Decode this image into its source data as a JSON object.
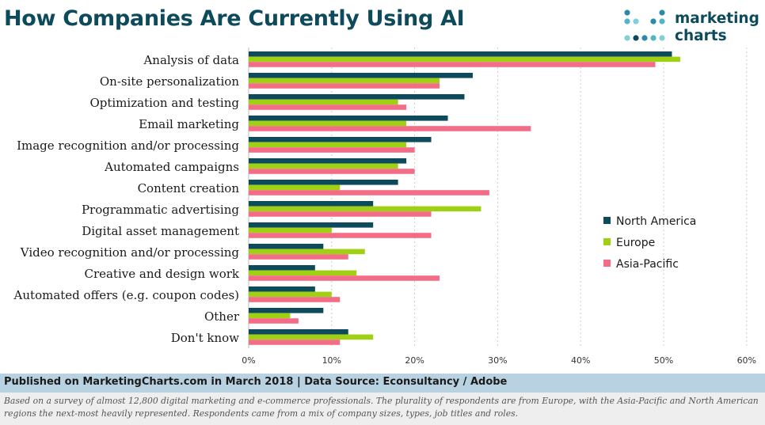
{
  "title": "How Companies Are Currently Using AI",
  "brand": {
    "line1": "marketing",
    "line2": "charts"
  },
  "colors": {
    "title": "#0d4a5c",
    "series": [
      "#0d4a5c",
      "#9fd013",
      "#f46d86"
    ],
    "logo_dots": [
      "#2a8aa8",
      "#4fb6c9",
      "#7fd0d8",
      "#0d4a5c"
    ]
  },
  "chart_data": {
    "type": "bar",
    "orientation": "horizontal",
    "categories": [
      "Analysis of data",
      "On-site personalization",
      "Optimization and testing",
      "Email marketing",
      "Image recognition and/or processing",
      "Automated campaigns",
      "Content creation",
      "Programmatic advertising",
      "Digital asset management",
      "Video recognition and/or processing",
      "Creative and design work",
      "Automated offers (e.g. coupon codes)",
      "Other",
      "Don't know"
    ],
    "series": [
      {
        "name": "North America",
        "values": [
          51,
          27,
          26,
          24,
          22,
          19,
          18,
          15,
          15,
          9,
          8,
          8,
          9,
          12
        ]
      },
      {
        "name": "Europe",
        "values": [
          52,
          23,
          18,
          19,
          19,
          18,
          11,
          28,
          10,
          14,
          13,
          10,
          5,
          15
        ]
      },
      {
        "name": "Asia-Pacific",
        "values": [
          49,
          23,
          19,
          34,
          20,
          20,
          29,
          22,
          22,
          12,
          23,
          11,
          6,
          11
        ]
      }
    ],
    "xlim": [
      0,
      60
    ],
    "xticks": [
      0,
      10,
      20,
      30,
      40,
      50,
      60
    ],
    "tick_suffix": "%",
    "grid": true,
    "legend_position": "right"
  },
  "footer": {
    "source": "Published on MarketingCharts.com in March 2018 | Data Source: Econsultancy / Adobe",
    "note": "Based on a survey of almost 12,800 digital marketing and e-commerce professionals. The plurality of respondents are from Europe, with the Asia-Pacific and North American regions the next-most heavily represented. Respondents came from a mix of company sizes, types, job titles and roles."
  }
}
